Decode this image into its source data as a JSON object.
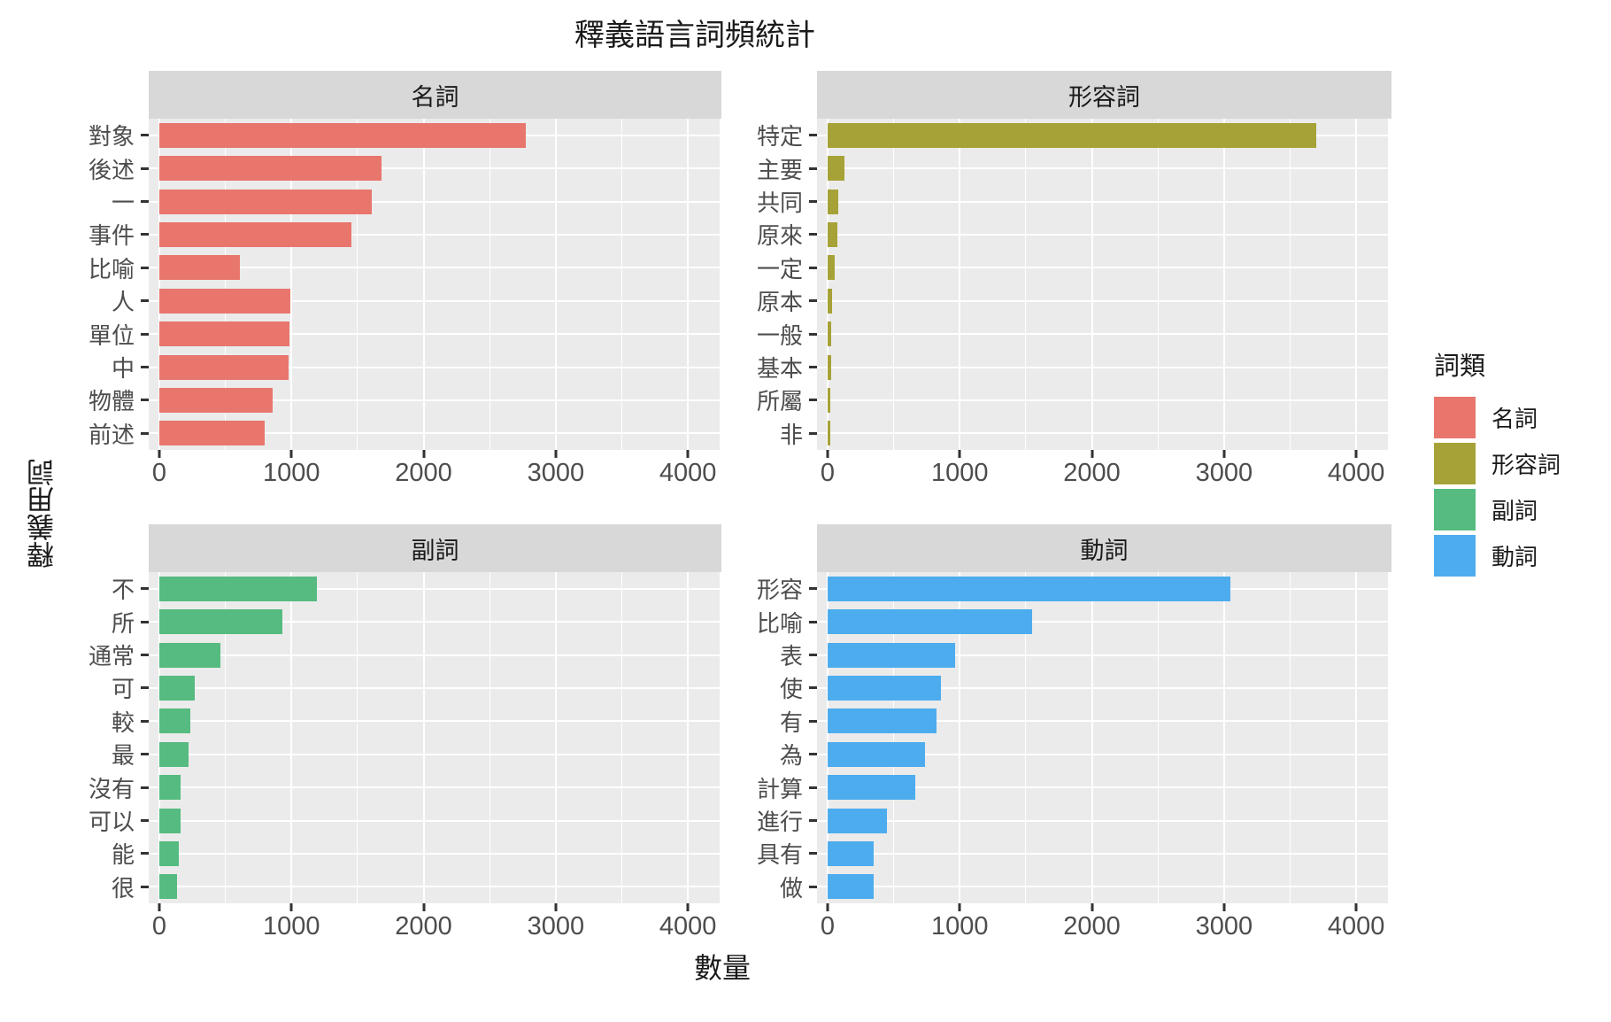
{
  "title": "釋義語言詞頻統計",
  "axes": {
    "x_title": "數量",
    "y_title": "釋義用詞"
  },
  "legend": {
    "title": "詞類",
    "entries": [
      {
        "label": "名詞",
        "color": "#E8766D"
      },
      {
        "label": "形容詞",
        "color": "#A7A237"
      },
      {
        "label": "副詞",
        "color": "#55BB80"
      },
      {
        "label": "動詞",
        "color": "#4DACEE"
      }
    ]
  },
  "chart_data": {
    "type": "bar",
    "orientation": "horizontal",
    "title": "釋義語言詞頻統計",
    "xlabel": "數量",
    "ylabel": "釋義用詞",
    "legend_title": "詞類",
    "legend_position": "right",
    "grid": true,
    "xlim": [
      -80,
      4240
    ],
    "x_major_ticks": [
      0,
      1000,
      2000,
      3000,
      4000
    ],
    "x_minor_ticks": [
      500,
      1500,
      2500,
      3500
    ],
    "panel_background": "#EBEBEB",
    "strip_background": "#D8D8D8",
    "facets": [
      {
        "label": "名詞",
        "color": "#E8766D",
        "categories": [
          "對象",
          "後述",
          "一",
          "事件",
          "比喻",
          "人",
          "單位",
          "中",
          "物體",
          "前述"
        ],
        "values": [
          2770,
          1680,
          1610,
          1455,
          610,
          995,
          985,
          975,
          855,
          800
        ]
      },
      {
        "label": "形容詞",
        "color": "#A7A237",
        "categories": [
          "特定",
          "主要",
          "共同",
          "原來",
          "一定",
          "原本",
          "一般",
          "基本",
          "所屬",
          "非"
        ],
        "values": [
          3700,
          130,
          80,
          76,
          53,
          36,
          28,
          24,
          22,
          18
        ]
      },
      {
        "label": "副詞",
        "color": "#55BB80",
        "categories": [
          "不",
          "所",
          "通常",
          "可",
          "較",
          "最",
          "沒有",
          "可以",
          "能",
          "很"
        ],
        "values": [
          1190,
          930,
          465,
          265,
          235,
          220,
          162,
          158,
          145,
          135
        ]
      },
      {
        "label": "動詞",
        "color": "#4DACEE",
        "categories": [
          "形容",
          "比喻",
          "表",
          "使",
          "有",
          "為",
          "計算",
          "進行",
          "具有",
          "做"
        ],
        "values": [
          3050,
          1550,
          965,
          860,
          825,
          740,
          665,
          450,
          352,
          348
        ]
      }
    ]
  }
}
